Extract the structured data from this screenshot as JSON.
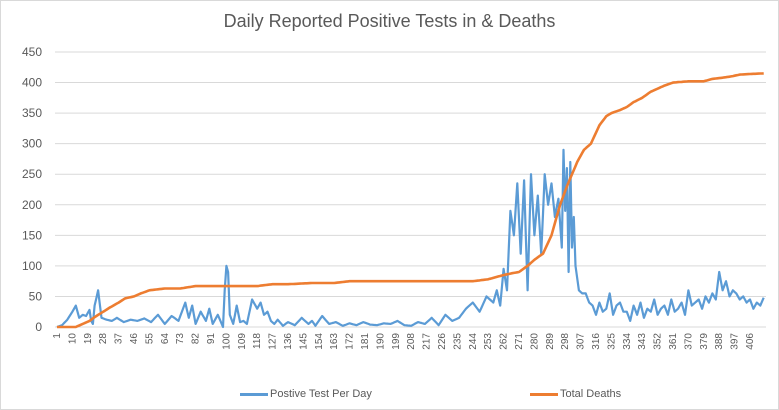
{
  "chart_data": {
    "type": "line",
    "title": "Daily Reported Positive Tests in & Deaths",
    "xlabel": "",
    "ylabel": "",
    "ylim": [
      0,
      450
    ],
    "yticks": [
      "0",
      "50",
      "100",
      "150",
      "200",
      "250",
      "300",
      "350",
      "400",
      "450"
    ],
    "xlim": [
      1,
      414
    ],
    "xticks": [
      "1",
      "10",
      "19",
      "28",
      "37",
      "46",
      "55",
      "64",
      "73",
      "82",
      "91",
      "100",
      "109",
      "118",
      "127",
      "136",
      "145",
      "154",
      "163",
      "172",
      "181",
      "190",
      "199",
      "208",
      "217",
      "226",
      "235",
      "244",
      "253",
      "262",
      "271",
      "280",
      "289",
      "298",
      "307",
      "316",
      "325",
      "334",
      "343",
      "352",
      "361",
      "370",
      "379",
      "388",
      "397",
      "406"
    ],
    "grid": "horizontal",
    "legend_position": "bottom",
    "series": [
      {
        "name": "Postive Test Per Day",
        "color": "#5b9bd5",
        "anchors_day": [
          1,
          4,
          7,
          10,
          12,
          14,
          16,
          18,
          20,
          21,
          22,
          23,
          25,
          27,
          30,
          33,
          36,
          40,
          44,
          48,
          52,
          56,
          60,
          64,
          68,
          72,
          76,
          78,
          80,
          82,
          85,
          88,
          90,
          92,
          95,
          98,
          99,
          100,
          101,
          102,
          104,
          106,
          108,
          110,
          112,
          115,
          118,
          120,
          122,
          124,
          126,
          128,
          130,
          133,
          136,
          140,
          144,
          148,
          150,
          152,
          156,
          160,
          164,
          168,
          172,
          176,
          180,
          184,
          188,
          192,
          196,
          200,
          204,
          208,
          212,
          216,
          220,
          224,
          228,
          232,
          236,
          240,
          244,
          248,
          252,
          256,
          258,
          260,
          262,
          264,
          266,
          268,
          270,
          272,
          274,
          276,
          278,
          280,
          282,
          284,
          286,
          288,
          290,
          292,
          294,
          296,
          297,
          298,
          299,
          300,
          301,
          302,
          303,
          304,
          306,
          308,
          310,
          312,
          314,
          316,
          318,
          320,
          322,
          324,
          326,
          328,
          330,
          332,
          334,
          336,
          338,
          340,
          342,
          344,
          346,
          348,
          350,
          352,
          354,
          356,
          358,
          360,
          362,
          364,
          366,
          368,
          370,
          372,
          374,
          376,
          378,
          380,
          382,
          384,
          386,
          388,
          390,
          392,
          394,
          396,
          398,
          400,
          402,
          404,
          406,
          408,
          410,
          412,
          414
        ],
        "anchors_value": [
          0,
          3,
          12,
          25,
          35,
          15,
          20,
          18,
          28,
          10,
          5,
          35,
          60,
          15,
          12,
          10,
          15,
          8,
          12,
          10,
          14,
          8,
          20,
          5,
          18,
          10,
          40,
          15,
          35,
          5,
          25,
          10,
          30,
          5,
          20,
          0,
          60,
          100,
          90,
          20,
          5,
          35,
          8,
          10,
          5,
          45,
          30,
          40,
          20,
          25,
          10,
          5,
          12,
          2,
          8,
          3,
          15,
          5,
          10,
          2,
          18,
          5,
          8,
          2,
          6,
          3,
          8,
          4,
          3,
          6,
          5,
          10,
          3,
          2,
          8,
          5,
          15,
          3,
          20,
          10,
          15,
          30,
          40,
          25,
          50,
          40,
          60,
          35,
          95,
          60,
          190,
          150,
          235,
          120,
          240,
          60,
          250,
          150,
          215,
          120,
          250,
          200,
          235,
          180,
          210,
          130,
          290,
          190,
          260,
          90,
          270,
          130,
          180,
          100,
          60,
          55,
          55,
          40,
          35,
          20,
          40,
          25,
          30,
          55,
          20,
          35,
          40,
          25,
          25,
          10,
          35,
          20,
          40,
          15,
          30,
          25,
          45,
          20,
          30,
          35,
          20,
          45,
          25,
          30,
          40,
          20,
          60,
          35,
          40,
          45,
          30,
          50,
          40,
          55,
          45,
          90,
          60,
          75,
          50,
          60,
          55,
          45,
          50,
          40,
          45,
          30,
          40,
          35,
          48
        ]
      },
      {
        "name": "Total Deaths",
        "color": "#ed7d31",
        "anchors_day": [
          1,
          12,
          16,
          20,
          24,
          28,
          32,
          37,
          41,
          46,
          50,
          55,
          64,
          73,
          82,
          91,
          118,
          127,
          136,
          150,
          163,
          172,
          200,
          244,
          253,
          258,
          262,
          267,
          271,
          276,
          280,
          285,
          290,
          295,
          299,
          302,
          305,
          309,
          313,
          318,
          322,
          325,
          330,
          334,
          338,
          343,
          348,
          352,
          356,
          361,
          370,
          379,
          384,
          390,
          395,
          400,
          406,
          414
        ],
        "anchors_value": [
          0,
          0,
          5,
          10,
          18,
          25,
          32,
          40,
          47,
          50,
          55,
          60,
          63,
          63,
          67,
          67,
          67,
          70,
          70,
          72,
          72,
          75,
          75,
          75,
          78,
          82,
          85,
          88,
          90,
          100,
          110,
          120,
          150,
          200,
          230,
          250,
          270,
          290,
          300,
          330,
          345,
          350,
          355,
          360,
          368,
          375,
          385,
          390,
          395,
          400,
          402,
          402,
          406,
          408,
          410,
          413,
          414,
          415
        ]
      }
    ]
  },
  "legend": {
    "series1_label": "Postive Test Per Day",
    "series2_label": "Total Deaths"
  }
}
